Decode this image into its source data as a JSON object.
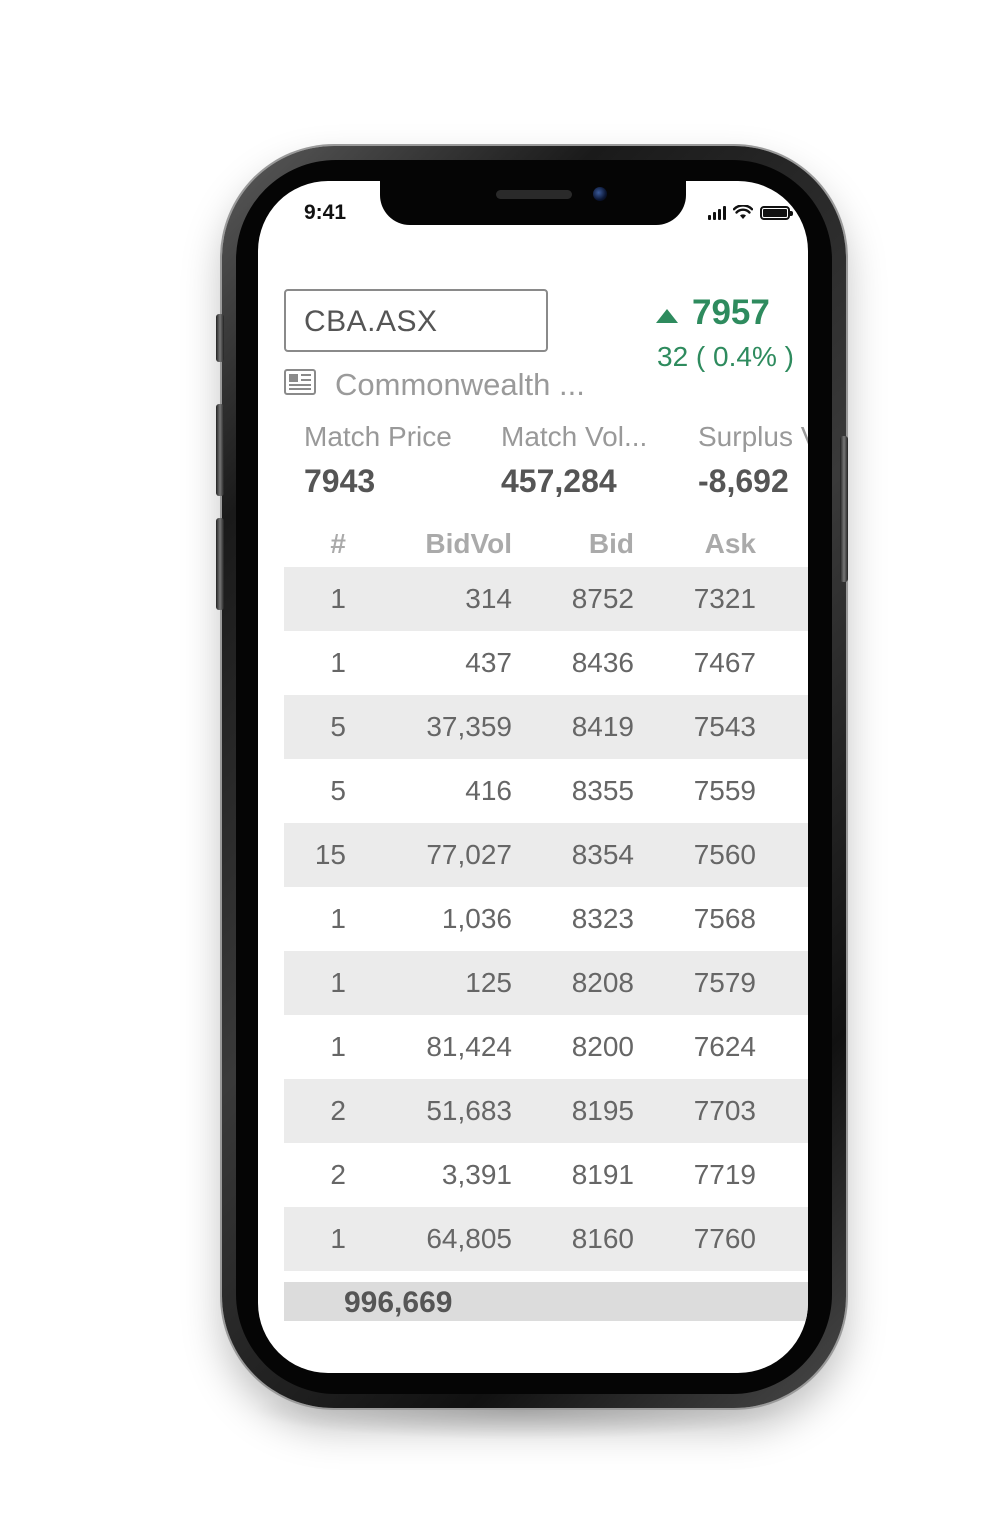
{
  "status_bar": {
    "time": "9:41"
  },
  "header": {
    "symbol": "CBA.ASX",
    "company_name": "Commonwealth ...",
    "last_price": "7957",
    "change": "32 ( 0.4% )",
    "direction": "up"
  },
  "stats": [
    {
      "label": "Match Price",
      "value": "7943"
    },
    {
      "label": "Match Vol...",
      "value": "457,284"
    },
    {
      "label": "Surplus V",
      "value": "-8,692"
    }
  ],
  "depth_table": {
    "columns": [
      "#",
      "BidVol",
      "Bid",
      "Ask"
    ],
    "rows": [
      [
        "1",
        "314",
        "8752",
        "7321"
      ],
      [
        "1",
        "437",
        "8436",
        "7467"
      ],
      [
        "5",
        "37,359",
        "8419",
        "7543"
      ],
      [
        "5",
        "416",
        "8355",
        "7559"
      ],
      [
        "15",
        "77,027",
        "8354",
        "7560"
      ],
      [
        "1",
        "1,036",
        "8323",
        "7568"
      ],
      [
        "1",
        "125",
        "8208",
        "7579"
      ],
      [
        "1",
        "81,424",
        "8200",
        "7624"
      ],
      [
        "2",
        "51,683",
        "8195",
        "7703"
      ],
      [
        "2",
        "3,391",
        "8191",
        "7719"
      ],
      [
        "1",
        "64,805",
        "8160",
        "7760"
      ]
    ],
    "total": "996,669"
  },
  "colors": {
    "positive": "#2e8b5e",
    "row_shade": "#ebebeb",
    "total_bg": "#dcdcdc"
  },
  "icons": [
    "news-icon",
    "arrow-up-icon",
    "signal-icon",
    "wifi-icon",
    "battery-icon"
  ]
}
